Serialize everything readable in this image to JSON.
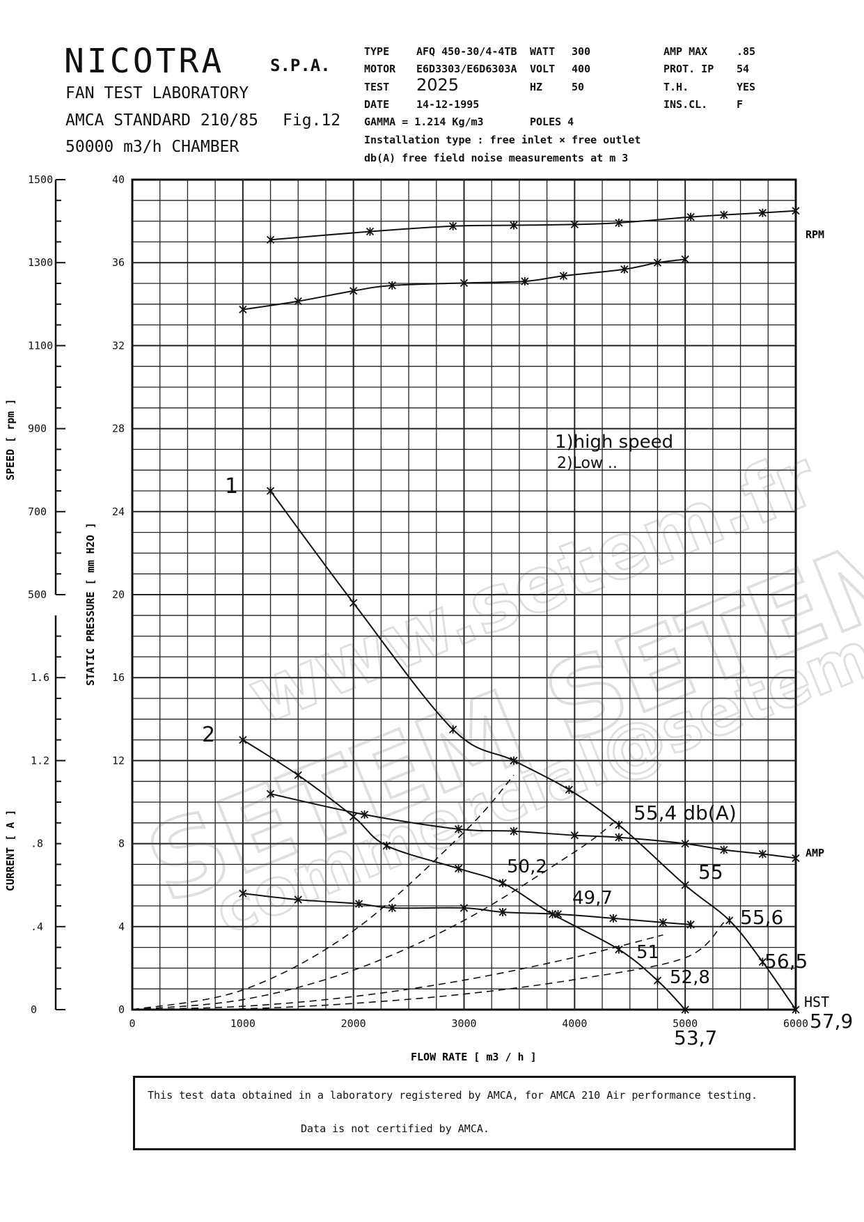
{
  "header": {
    "brand": "NICOTRA",
    "brand_suffix": "S.P.A.",
    "line1": "FAN TEST LABORATORY",
    "line2": "AMCA STANDARD 210/85",
    "fig": "Fig.12",
    "line3": "50000 m3/h  CHAMBER"
  },
  "specs": {
    "type_label": "TYPE",
    "type_value": "AFQ 450-30/4-4TB",
    "watt_label": "WATT",
    "watt_value": "300",
    "ampmax_label": "AMP MAX",
    "ampmax_value": ".85",
    "motor_label": "MOTOR",
    "motor_value": "E6D3303/E6D6303A",
    "volt_label": "VOLT",
    "volt_value": "400",
    "prot_label": "PROT.  IP",
    "prot_value": "54",
    "test_label": "TEST",
    "test_value": "2025",
    "hz_label": "HZ",
    "hz_value": "50",
    "th_label": "T.H.",
    "th_value": "YES",
    "date_label": "DATE",
    "date_value": "14-12-1995",
    "inscl_label": "INS.CL.",
    "inscl_value": "F",
    "gamma": "GAMMA = 1.214 Kg/m3",
    "poles": "POLES 4",
    "installation": "Installation type : free inlet × free outlet",
    "noise": "db(A) free field noise measurements at m 3"
  },
  "footer": {
    "line1": "This test data obtained in a laboratory registered by AMCA, for  AMCA 210 Air performance testing.",
    "line2": "Data is not certified by AMCA."
  },
  "watermark": {
    "line1": "www.setem.fr",
    "line2": "SETEM SETEM",
    "line3": "commercial@setem.fr"
  },
  "chart_data": {
    "type": "line",
    "xlabel": "FLOW RATE [ m3 / h ]",
    "x_ticks": [
      "0",
      "1000",
      "2000",
      "3000",
      "4000",
      "5000",
      "6000"
    ],
    "xlim": [
      0,
      6000
    ],
    "left_axes": {
      "speed": {
        "label": "SPEED  [ rpm ]",
        "ticks": [
          "500",
          "700",
          "900",
          "1100",
          "1300",
          "1500"
        ],
        "range": [
          500,
          1500
        ]
      },
      "current": {
        "label": "CURRENT  [ A ]",
        "ticks": [
          "0",
          ".4",
          ".8",
          "1.2",
          "1.6"
        ],
        "range": [
          0,
          2
        ]
      },
      "pressure": {
        "label": "STATIC PRESSURE  [ mm H2O ]",
        "ticks": [
          "0",
          "4",
          "8",
          "12",
          "16",
          "20",
          "24",
          "28",
          "32",
          "36",
          "40"
        ],
        "range": [
          0,
          40
        ]
      }
    },
    "grid": true,
    "right_labels": {
      "rpm": "RPM",
      "amp": "AMP",
      "hst": "HST"
    },
    "series": [
      {
        "name": "RPM",
        "axis": "speed",
        "x": [
          1250,
          2150,
          2900,
          3450,
          4000,
          4400,
          5050,
          5350,
          5700,
          6000
        ],
        "y": [
          1355,
          1375,
          1388,
          1390,
          1392,
          1396,
          1410,
          1415,
          1420,
          1425
        ]
      },
      {
        "name": "",
        "axis": "speed",
        "x": [
          1000,
          1500,
          2000,
          2350,
          3000,
          3550,
          3900,
          4450,
          4750,
          5000
        ],
        "y": [
          1187,
          1207,
          1232,
          1245,
          1251,
          1255,
          1268,
          1284,
          1300,
          1308
        ]
      },
      {
        "name": "1",
        "axis": "pressure",
        "x": [
          1250,
          2000,
          2900,
          3450,
          3950,
          4400,
          5000,
          5400,
          5700,
          6000
        ],
        "y": [
          25,
          19.6,
          13.5,
          12.0,
          10.6,
          8.9,
          6.0,
          4.3,
          2.3,
          0.0
        ]
      },
      {
        "name": "2",
        "axis": "pressure",
        "x": [
          1000,
          1500,
          2000,
          2300,
          2950,
          3350,
          3800,
          4400,
          4750,
          5000
        ],
        "y": [
          13.0,
          11.3,
          9.3,
          7.9,
          6.8,
          6.1,
          4.6,
          2.9,
          1.4,
          0.0
        ]
      },
      {
        "name": "AMP",
        "axis": "current",
        "x": [
          1250,
          2100,
          2950,
          3450,
          4000,
          4400,
          5000,
          5350,
          5700,
          6000
        ],
        "y": [
          1.04,
          0.94,
          0.87,
          0.86,
          0.84,
          0.83,
          0.8,
          0.77,
          0.75,
          0.73
        ]
      },
      {
        "name": "",
        "axis": "current",
        "x": [
          1000,
          1500,
          2050,
          2350,
          3000,
          3350,
          3850,
          4350,
          4800,
          5050
        ],
        "y": [
          0.56,
          0.53,
          0.51,
          0.49,
          0.49,
          0.47,
          0.46,
          0.44,
          0.42,
          0.41
        ]
      }
    ],
    "system_curves": [
      {
        "x": [
          0,
          1000,
          2000,
          3000,
          3450
        ],
        "y": [
          0,
          0.95,
          3.8,
          8.55,
          11.3
        ]
      },
      {
        "x": [
          0,
          1000,
          2000,
          3000,
          4000,
          4350
        ],
        "y": [
          0,
          0.48,
          1.9,
          4.3,
          7.6,
          9.0
        ]
      },
      {
        "x": [
          0,
          1000,
          2000,
          3000,
          4000,
          4800
        ],
        "y": [
          0,
          0.16,
          0.63,
          1.42,
          2.52,
          3.6
        ]
      },
      {
        "x": [
          0,
          1000,
          2000,
          3000,
          4000,
          5000,
          5350
        ],
        "y": [
          0,
          0.04,
          0.3,
          0.75,
          1.45,
          2.5,
          4.2
        ]
      }
    ],
    "annotations": {
      "legend_line1": "1)high speed",
      "legend_line2": "2)Low  ..",
      "curve1_label": "1",
      "curve2_label": "2",
      "noise_values": [
        "55,4 db(A)",
        "55",
        "55,6",
        "56,5",
        "50,2",
        "49,7",
        "51",
        "52,8",
        "53,7",
        "57,9"
      ]
    }
  }
}
